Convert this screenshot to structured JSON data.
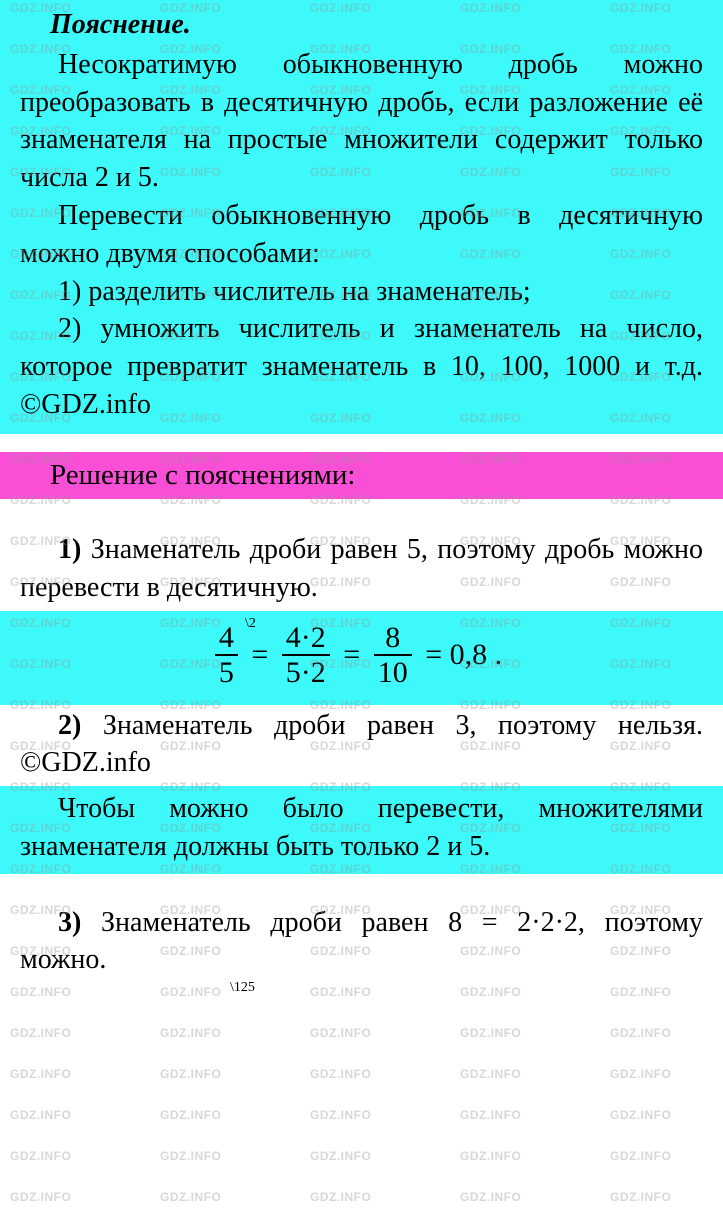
{
  "watermark_text": "GDZ.INFO",
  "heading": "Пояснение.",
  "explain_p1": "Несократимую обыкновенную дробь можно преобразовать в десятичную дробь, если разложение её знаменателя на простые множители содержит только числа 2 и 5.",
  "explain_p2": "Перевести обыкновенную дробь в десятичную можно двумя способами:",
  "explain_item1": "1) разделить числитель на знаме­натель;",
  "explain_item2_a": "2) умножить числитель и знамена­тель на число, которое превратит знаменатель в 10, 100, 1000 и т.д. ©GDZ.info",
  "solution_header": "Решение с пояснениями:",
  "item1_label": "1)",
  "item1_text": " Знаменатель дроби равен 5, поэтому дробь можно перевести в деся­тичную.",
  "eq1": {
    "frac1_num": "4",
    "frac1_den": "5",
    "sup": "\\2",
    "frac2_num": "4·2",
    "frac2_den": "5·2",
    "frac3_num": "8",
    "frac3_den": "10",
    "result": "= 0,8 ."
  },
  "item2_label": "2)",
  "item2_text": " Знаменатель дроби равен 3, поэтому нельзя. ©GDZ.info",
  "item2_extra": "Чтобы можно было перевести, множителями знаменателя должны быть только 2 и 5.",
  "item3_label": "3)",
  "item3_text": " Знаменатель дроби равен 8 = 2·2·2, поэтому можно.",
  "item3_sup": "\\125",
  "colors": {
    "cyan": "#3ef9f9",
    "pink": "#f94fd6",
    "white": "#ffffff",
    "watermark": "rgba(150,150,150,0.38)"
  }
}
